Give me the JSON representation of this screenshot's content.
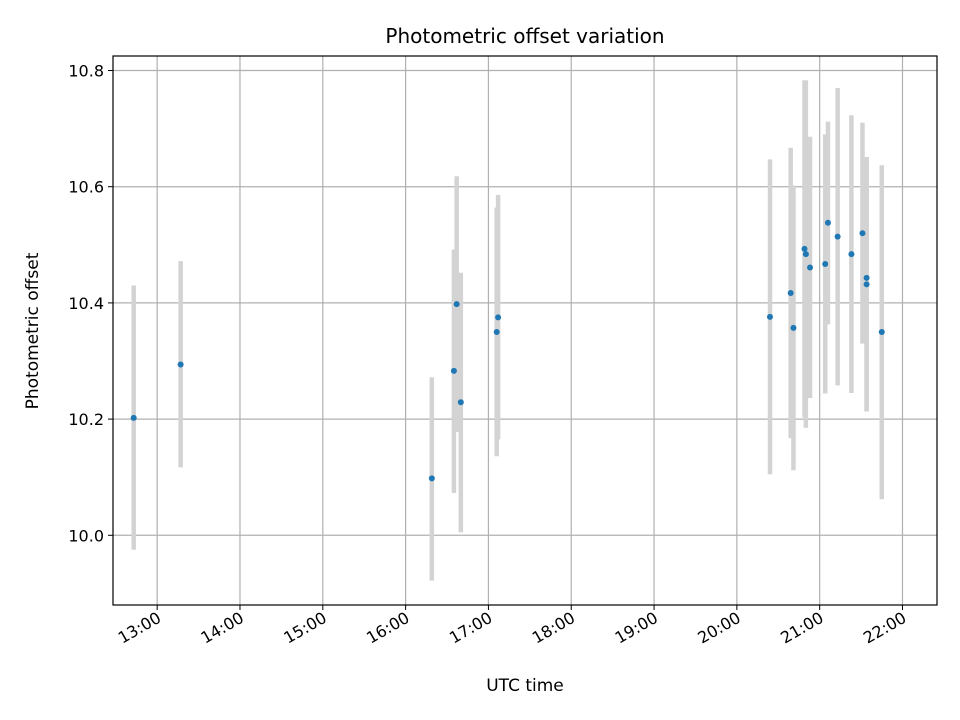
{
  "chart_data": {
    "type": "scatter",
    "title": "Photometric offset variation",
    "xlabel": "UTC time",
    "ylabel": "Photometric offset",
    "x_unit": "time",
    "x_ticks": [
      "13:00",
      "14:00",
      "15:00",
      "16:00",
      "17:00",
      "18:00",
      "19:00",
      "20:00",
      "21:00",
      "22:00"
    ],
    "xlim": [
      "12:28",
      "22:25"
    ],
    "y_ticks": [
      "10.0",
      "10.2",
      "10.4",
      "10.6",
      "10.8"
    ],
    "ylim": [
      9.88,
      10.825
    ],
    "grid": true,
    "colors": {
      "point": "#1f77b4",
      "errorbar": "#d3d3d3",
      "grid": "#b0b0b0"
    },
    "points": [
      {
        "x": "12:43",
        "y": 10.202,
        "low": 9.975,
        "high": 10.43
      },
      {
        "x": "13:17",
        "y": 10.294,
        "low": 10.117,
        "high": 10.472
      },
      {
        "x": "16:19",
        "y": 10.098,
        "low": 9.922,
        "high": 10.272
      },
      {
        "x": "16:35",
        "y": 10.283,
        "low": 10.073,
        "high": 10.492
      },
      {
        "x": "16:37",
        "y": 10.398,
        "low": 10.178,
        "high": 10.618
      },
      {
        "x": "16:40",
        "y": 10.229,
        "low": 10.005,
        "high": 10.452
      },
      {
        "x": "17:06",
        "y": 10.35,
        "low": 10.136,
        "high": 10.564
      },
      {
        "x": "17:07",
        "y": 10.375,
        "low": 10.165,
        "high": 10.586
      },
      {
        "x": "20:24",
        "y": 10.376,
        "low": 10.105,
        "high": 10.647
      },
      {
        "x": "20:39",
        "y": 10.417,
        "low": 10.167,
        "high": 10.667
      },
      {
        "x": "20:41",
        "y": 10.357,
        "low": 10.112,
        "high": 10.602
      },
      {
        "x": "20:49",
        "y": 10.493,
        "low": 10.203,
        "high": 10.783
      },
      {
        "x": "20:50",
        "y": 10.484,
        "low": 10.185,
        "high": 10.783
      },
      {
        "x": "20:53",
        "y": 10.461,
        "low": 10.236,
        "high": 10.686
      },
      {
        "x": "21:04",
        "y": 10.467,
        "low": 10.244,
        "high": 10.69
      },
      {
        "x": "21:06",
        "y": 10.538,
        "low": 10.363,
        "high": 10.712
      },
      {
        "x": "21:13",
        "y": 10.514,
        "low": 10.258,
        "high": 10.77
      },
      {
        "x": "21:23",
        "y": 10.484,
        "low": 10.245,
        "high": 10.723
      },
      {
        "x": "21:31",
        "y": 10.52,
        "low": 10.33,
        "high": 10.71
      },
      {
        "x": "21:34",
        "y": 10.443,
        "low": 10.213,
        "high": 10.651
      },
      {
        "x": "21:34",
        "y": 10.432,
        "low": 10.213,
        "high": 10.651
      },
      {
        "x": "21:45",
        "y": 10.35,
        "low": 10.062,
        "high": 10.637
      }
    ]
  }
}
